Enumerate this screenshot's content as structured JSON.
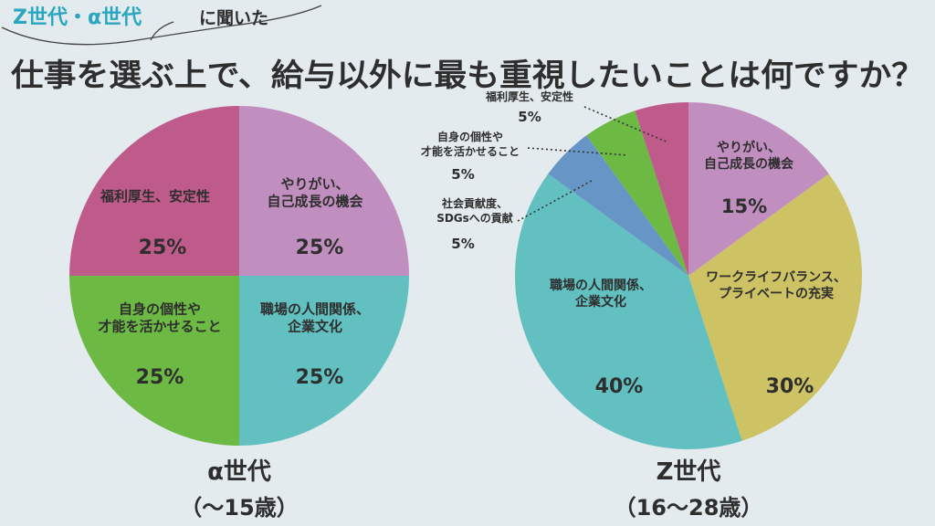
{
  "header": {
    "tag_highlight": "Z世代・α世代",
    "tag_suffix": "に聞いた",
    "title": "仕事を選ぶ上で、給与以外に最も重視したいことは何ですか？"
  },
  "colors": {
    "background": "#e3ebee",
    "pink": "#bf5b8b",
    "purple": "#c18fbf",
    "green": "#6cb944",
    "teal": "#63c0c0",
    "yellow": "#cdc264",
    "blue": "#6795c6",
    "accent_text": "#2aa6c0"
  },
  "chart_data": [
    {
      "type": "pie",
      "title": "α世代",
      "subtitle": "（〜15歳）",
      "slices": [
        {
          "label": "やりがい、\n自己成長の機会",
          "value": 25,
          "value_label": "25%",
          "color": "#c18fbf"
        },
        {
          "label": "職場の人間関係、\n企業文化",
          "value": 25,
          "value_label": "25%",
          "color": "#63c0c0"
        },
        {
          "label": "自身の個性や\n才能を活かせること",
          "value": 25,
          "value_label": "25%",
          "color": "#6cb944"
        },
        {
          "label": "福利厚生、安定性",
          "value": 25,
          "value_label": "25%",
          "color": "#bf5b8b"
        }
      ]
    },
    {
      "type": "pie",
      "title": "Z世代",
      "subtitle": "（16〜28歳）",
      "slices": [
        {
          "label": "やりがい、\n自己成長の機会",
          "value": 15,
          "value_label": "15%",
          "color": "#c18fbf"
        },
        {
          "label": "ワークライフバランス、\nプライベートの充実",
          "value": 30,
          "value_label": "30%",
          "color": "#cdc264"
        },
        {
          "label": "職場の人間関係、\n企業文化",
          "value": 40,
          "value_label": "40%",
          "color": "#63c0c0"
        },
        {
          "label": "社会貢献度、\nSDGsへの貢献",
          "value": 5,
          "value_label": "5%",
          "color": "#6795c6"
        },
        {
          "label": "自身の個性や\n才能を活かせること",
          "value": 5,
          "value_label": "5%",
          "color": "#6cb944"
        },
        {
          "label": "福利厚生、安定性",
          "value": 5,
          "value_label": "5%",
          "color": "#bf5b8b"
        }
      ]
    }
  ]
}
